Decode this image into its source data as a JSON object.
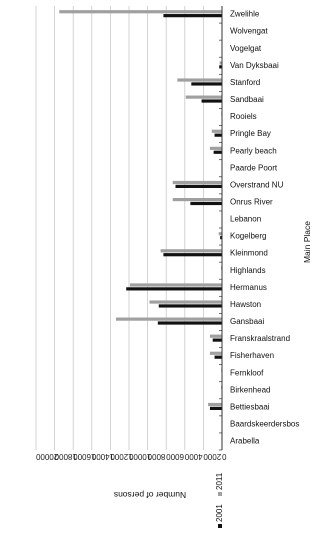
{
  "chart_data": {
    "type": "bar",
    "orientation": "horizontal",
    "xlabel": "Number of persons",
    "ylabel": "Main Place",
    "xlim": [
      0,
      20000
    ],
    "x_ticks": [
      "0",
      "2000",
      "4000",
      "6000",
      "8000",
      "10000",
      "12000",
      "14000",
      "16000",
      "18000",
      "20000"
    ],
    "grid": "vertical",
    "legend_position": "bottom",
    "categories": [
      "Zwelihle",
      "Wolvengat",
      "Vogelgat",
      "Van Dyksbaai",
      "Stanford",
      "Sandbaai",
      "Rooiels",
      "Pringle Bay",
      "Pearly beach",
      "Paarde Poort",
      "Overstrand NU",
      "Onrus River",
      "Lebanon",
      "Kogelberg",
      "Kleinmond",
      "Highlands",
      "Hermanus",
      "Hawston",
      "Gansbaai",
      "Franskraalstrand",
      "Fisherhaven",
      "Fernkloof",
      "Birkenhead",
      "Bettiesbaai",
      "Baardskeerdersbos",
      "Arabella"
    ],
    "series": [
      {
        "name": "2001",
        "color": "#111111",
        "values": [
          6300,
          0,
          0,
          300,
          3300,
          2200,
          50,
          800,
          900,
          50,
          5000,
          3400,
          50,
          200,
          6300,
          0,
          10300,
          6800,
          6900,
          1000,
          800,
          50,
          50,
          1300,
          50,
          0
        ]
      },
      {
        "name": "2011",
        "color": "#a0a0a0",
        "values": [
          17500,
          0,
          0,
          250,
          4800,
          3900,
          80,
          1100,
          1300,
          30,
          5300,
          5300,
          20,
          350,
          6600,
          100,
          9900,
          7800,
          11400,
          1300,
          1300,
          80,
          100,
          1500,
          60,
          60
        ]
      }
    ]
  }
}
